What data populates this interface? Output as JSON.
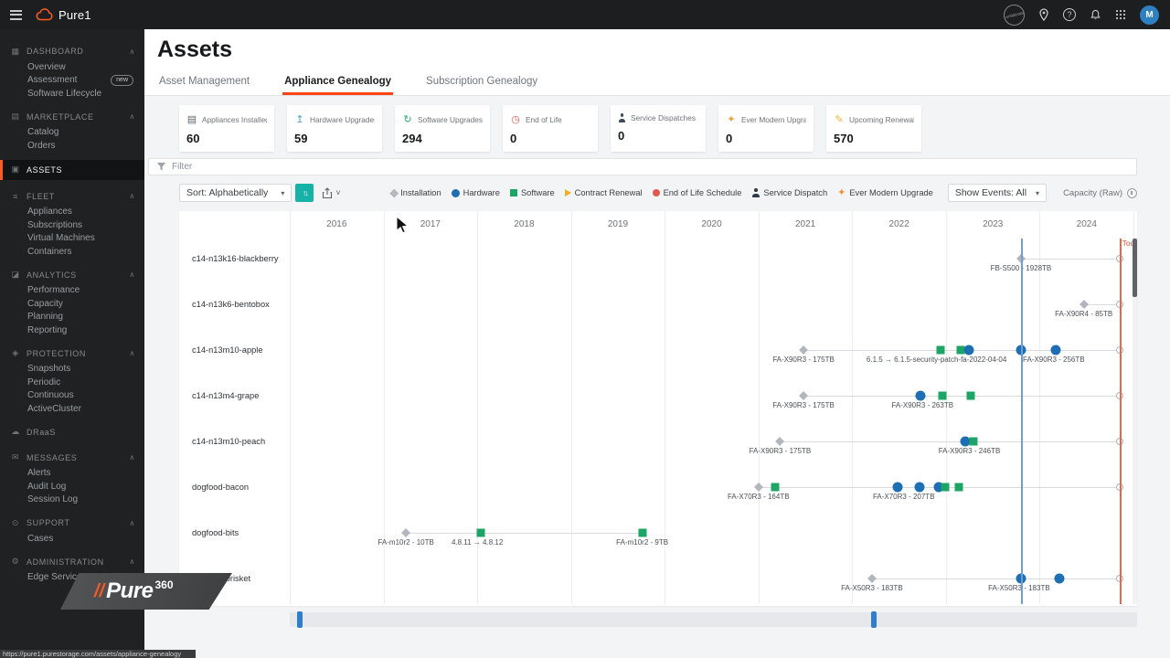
{
  "topbar": {
    "brand": "Pure1",
    "stamp": "confidential",
    "avatar": "M"
  },
  "sidebar": {
    "sections": [
      {
        "id": "dashboard",
        "label": "DASHBOARD",
        "icon": "dashboard-icon",
        "chevron": true,
        "items": [
          {
            "label": "Overview"
          },
          {
            "label": "Assessment",
            "badge": "new"
          },
          {
            "label": "Software Lifecycle"
          }
        ]
      },
      {
        "id": "marketplace",
        "label": "MARKETPLACE",
        "icon": "marketplace-icon",
        "chevron": true,
        "items": [
          {
            "label": "Catalog"
          },
          {
            "label": "Orders"
          }
        ]
      },
      {
        "id": "assets",
        "label": "ASSETS",
        "icon": "assets-icon",
        "chevron": false,
        "active": true,
        "items": []
      },
      {
        "id": "fleet",
        "label": "FLEET",
        "icon": "fleet-icon",
        "chevron": true,
        "items": [
          {
            "label": "Appliances"
          },
          {
            "label": "Subscriptions"
          },
          {
            "label": "Virtual Machines"
          },
          {
            "label": "Containers"
          }
        ]
      },
      {
        "id": "analytics",
        "label": "ANALYTICS",
        "icon": "analytics-icon",
        "chevron": true,
        "items": [
          {
            "label": "Performance"
          },
          {
            "label": "Capacity"
          },
          {
            "label": "Planning"
          },
          {
            "label": "Reporting"
          }
        ]
      },
      {
        "id": "protection",
        "label": "PROTECTION",
        "icon": "protection-icon",
        "chevron": true,
        "items": [
          {
            "label": "Snapshots"
          },
          {
            "label": "Periodic"
          },
          {
            "label": "Continuous"
          },
          {
            "label": "ActiveCluster"
          }
        ]
      },
      {
        "id": "draas",
        "label": "DRaaS",
        "icon": "draas-icon",
        "chevron": false,
        "items": []
      },
      {
        "id": "messages",
        "label": "MESSAGES",
        "icon": "messages-icon",
        "chevron": true,
        "items": [
          {
            "label": "Alerts"
          },
          {
            "label": "Audit Log"
          },
          {
            "label": "Session Log"
          }
        ]
      },
      {
        "id": "support",
        "label": "SUPPORT",
        "icon": "support-icon",
        "chevron": true,
        "items": [
          {
            "label": "Cases"
          }
        ]
      },
      {
        "id": "administration",
        "label": "ADMINISTRATION",
        "icon": "administration-icon",
        "chevron": true,
        "items": [
          {
            "label": "Edge Service"
          }
        ]
      }
    ],
    "logo": {
      "slashes": "//",
      "brand": "Pure",
      "sup": "360"
    },
    "status_url": "https://pure1.purestorage.com/assets/appliance-genealogy"
  },
  "page": {
    "title": "Assets",
    "tabs": [
      {
        "label": "Asset Management",
        "active": false
      },
      {
        "label": "Appliance Genealogy",
        "active": true
      },
      {
        "label": "Subscription Genealogy",
        "active": false
      }
    ]
  },
  "stats": [
    {
      "label": "Appliances Installed",
      "value": "60",
      "icon": "appliances-icon",
      "color": "#5a6470"
    },
    {
      "label": "Hardware Upgrades",
      "value": "59",
      "icon": "hardware-upgrade-icon",
      "color": "#4f9bb8"
    },
    {
      "label": "Software Upgrades",
      "value": "294",
      "icon": "software-upgrade-icon",
      "color": "#2aa868"
    },
    {
      "label": "End of Life",
      "value": "0",
      "icon": "end-of-life-icon",
      "color": "#e05252"
    },
    {
      "label": "Service Dispatches",
      "value": "0",
      "icon": "service-dispatch-icon",
      "color": "#3d4a57"
    },
    {
      "label": "Ever Modern Upgrades",
      "value": "0",
      "icon": "ever-modern-icon",
      "color": "#f0a13a"
    },
    {
      "label": "Upcoming Renewals",
      "value": "570",
      "icon": "renewal-icon",
      "color": "#e8b339"
    }
  ],
  "filter": {
    "label": "Filter"
  },
  "toolbar": {
    "sort_label": "Sort: Alphabetically",
    "legend": [
      {
        "label": "Installation",
        "shape": "diamond",
        "color": "#b4b9bf"
      },
      {
        "label": "Hardware",
        "shape": "circle",
        "color": "#1e6eb4"
      },
      {
        "label": "Software",
        "shape": "square",
        "color": "#1da565"
      },
      {
        "label": "Contract Renewal",
        "shape": "arrow",
        "color": "#f2b01e"
      },
      {
        "label": "End of Life Schedule",
        "shape": "dot",
        "color": "#e2584d"
      },
      {
        "label": "Service Dispatch",
        "shape": "person",
        "color": "#2e3c49"
      },
      {
        "label": "Ever Modern Upgrade",
        "shape": "star",
        "color": "#ef8f35"
      }
    ],
    "show_events": "Show Events: All",
    "capacity_label": "Capacity (Raw)"
  },
  "chart_data": {
    "type": "timeline",
    "years": [
      "2016",
      "2017",
      "2018",
      "2019",
      "2020",
      "2021",
      "2022",
      "2023",
      "2024"
    ],
    "axis_start": 2016,
    "axis_end": 2025,
    "today": 2024.85,
    "today_label": "Today",
    "cursor": 2023.8,
    "rows": [
      {
        "name": "c14-n13k16-blackberry",
        "line_start": 2023.8,
        "open_end": true,
        "events": [
          {
            "t": 2023.8,
            "shape": "diamond"
          }
        ],
        "labels": [
          {
            "t": 2023.8,
            "text": "FB-S500 - 1928TB"
          }
        ]
      },
      {
        "name": "c14-n13k6-bentobox",
        "line_start": 2024.47,
        "open_end": true,
        "events": [
          {
            "t": 2024.47,
            "shape": "diamond"
          }
        ],
        "labels": [
          {
            "t": 2024.47,
            "text": "FA-X90R4 - 85TB"
          }
        ]
      },
      {
        "name": "c14-n13m10-apple",
        "line_start": 2021.48,
        "open_end": true,
        "events": [
          {
            "t": 2021.48,
            "shape": "diamond"
          },
          {
            "t": 2022.94,
            "shape": "square"
          },
          {
            "t": 2023.16,
            "shape": "square"
          },
          {
            "t": 2023.24,
            "shape": "circle"
          },
          {
            "t": 2023.8,
            "shape": "circle"
          },
          {
            "t": 2024.17,
            "shape": "circle"
          }
        ],
        "labels": [
          {
            "t": 2021.48,
            "text": "FA-X90R3 - 175TB"
          },
          {
            "t": 2022.9,
            "text": "6.1.5 → 6.1.5-security-patch-fa-2022-04-04"
          },
          {
            "t": 2024.15,
            "text": "FA-X90R3 - 256TB"
          }
        ]
      },
      {
        "name": "c14-n13m4-grape",
        "line_start": 2021.48,
        "open_end": true,
        "events": [
          {
            "t": 2021.48,
            "shape": "diamond"
          },
          {
            "t": 2022.73,
            "shape": "circle"
          },
          {
            "t": 2022.96,
            "shape": "square"
          },
          {
            "t": 2023.26,
            "shape": "square"
          }
        ],
        "labels": [
          {
            "t": 2021.48,
            "text": "FA-X90R3 - 175TB"
          },
          {
            "t": 2022.75,
            "text": "FA-X90R3 - 263TB"
          }
        ]
      },
      {
        "name": "c14-n13m10-peach",
        "line_start": 2021.23,
        "open_end": true,
        "events": [
          {
            "t": 2021.23,
            "shape": "diamond"
          },
          {
            "t": 2023.21,
            "shape": "circle"
          },
          {
            "t": 2023.29,
            "shape": "square"
          }
        ],
        "labels": [
          {
            "t": 2021.23,
            "text": "FA-X90R3 - 175TB"
          },
          {
            "t": 2023.25,
            "text": "FA-X90R3 - 246TB"
          }
        ]
      },
      {
        "name": "dogfood-bacon",
        "line_start": 2021.0,
        "open_end": true,
        "events": [
          {
            "t": 2021.0,
            "shape": "diamond"
          },
          {
            "t": 2021.18,
            "shape": "square"
          },
          {
            "t": 2022.48,
            "shape": "circle"
          },
          {
            "t": 2022.72,
            "shape": "circle"
          },
          {
            "t": 2022.92,
            "shape": "circle"
          },
          {
            "t": 2022.99,
            "shape": "square"
          },
          {
            "t": 2023.14,
            "shape": "square"
          }
        ],
        "labels": [
          {
            "t": 2021.0,
            "text": "FA-X70R3 - 164TB"
          },
          {
            "t": 2022.55,
            "text": "FA-X70R3 - 207TB"
          }
        ]
      },
      {
        "name": "dogfood-bits",
        "line_start": 2017.24,
        "line_end": 2019.76,
        "open_end": false,
        "events": [
          {
            "t": 2017.24,
            "shape": "diamond"
          },
          {
            "t": 2018.04,
            "shape": "square"
          },
          {
            "t": 2019.76,
            "shape": "square"
          }
        ],
        "labels": [
          {
            "t": 2017.24,
            "text": "FA-m10r2 - 10TB"
          },
          {
            "t": 2018.0,
            "text": "4.8.11 → 4.8.12"
          },
          {
            "t": 2019.76,
            "text": "FA-m10r2 - 9TB"
          }
        ]
      },
      {
        "name": "dogfood-brisket",
        "line_start": 2022.21,
        "open_end": true,
        "events": [
          {
            "t": 2022.21,
            "shape": "diamond"
          },
          {
            "t": 2023.8,
            "shape": "circle"
          },
          {
            "t": 2024.21,
            "shape": "circle"
          }
        ],
        "labels": [
          {
            "t": 2022.21,
            "text": "FA-X50R3 - 183TB"
          },
          {
            "t": 2023.78,
            "text": "FA-X50R3 - 183TB"
          }
        ]
      }
    ]
  },
  "slider": {
    "handles": [
      0.9,
      68.6
    ]
  },
  "icons": {
    "caret_down": "▾",
    "caret_small": "˅",
    "sort_arrows": "↑↓",
    "help_glyph": "?",
    "chevron_up": "∧",
    "star": "✦",
    "glyphs": {
      "appliances-icon": "▤",
      "hardware-upgrade-icon": "↥",
      "software-upgrade-icon": "↻",
      "end-of-life-icon": "◷",
      "service-dispatch-icon": "",
      "ever-modern-icon": "✦",
      "renewal-icon": "✎",
      "dashboard-icon": "▦",
      "marketplace-icon": "▤",
      "assets-icon": "▣",
      "fleet-icon": "≡",
      "analytics-icon": "◪",
      "protection-icon": "◈",
      "draas-icon": "☁",
      "messages-icon": "✉",
      "support-icon": "⊙",
      "administration-icon": "⚙"
    }
  }
}
